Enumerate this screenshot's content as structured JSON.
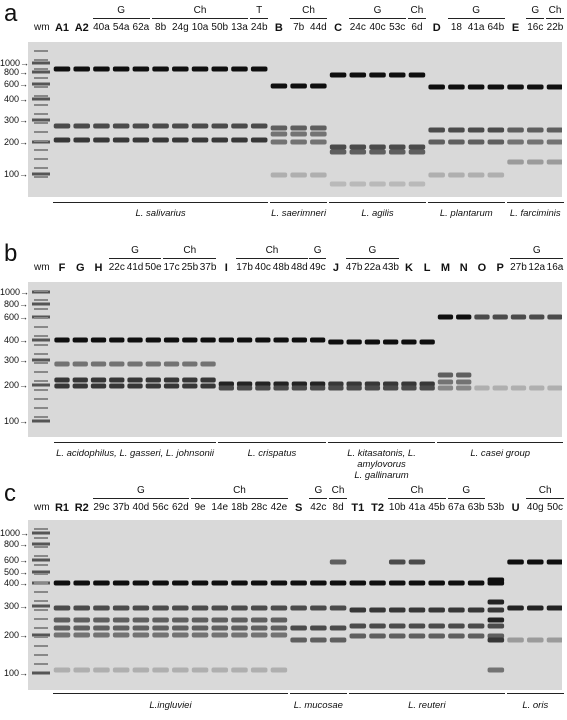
{
  "panels": [
    {
      "letter": "a",
      "wm": "wm",
      "lanes": [
        "A1",
        "A2",
        "40a",
        "54a",
        "62a",
        "8b",
        "24g",
        "10a",
        "50b",
        "13a",
        "24b",
        "B",
        "7b",
        "44d",
        "C",
        "24c",
        "40c",
        "53c",
        "6d",
        "D",
        "18",
        "41a",
        "64b",
        "E",
        "16c",
        "22b"
      ],
      "bold_lanes": [
        "A1",
        "A2",
        "B",
        "C",
        "D",
        "E"
      ],
      "groups": [
        {
          "label": "G",
          "from": 2,
          "to": 4
        },
        {
          "label": "Ch",
          "from": 5,
          "to": 9
        },
        {
          "label": "T",
          "from": 10,
          "to": 10
        },
        {
          "label": "Ch",
          "from": 12,
          "to": 13
        },
        {
          "label": "G",
          "from": 15,
          "to": 17
        },
        {
          "label": "Ch",
          "from": 18,
          "to": 18
        },
        {
          "label": "G",
          "from": 20,
          "to": 22
        },
        {
          "label": "G",
          "from": 24,
          "to": 24
        },
        {
          "label": "Ch",
          "from": 25,
          "to": 25
        }
      ],
      "markers": [
        "1000",
        "800",
        "600",
        "400",
        "300",
        "200",
        "100"
      ],
      "species": [
        {
          "label": "L. salivarius",
          "from": 0,
          "to": 10
        },
        {
          "label": "L. saerimneri",
          "from": 11,
          "to": 13
        },
        {
          "label": "L. agilis",
          "from": 14,
          "to": 18
        },
        {
          "label": "L. plantarum",
          "from": 19,
          "to": 22
        },
        {
          "label": "L. farciminis",
          "from": 23,
          "to": 25
        }
      ]
    },
    {
      "letter": "b",
      "wm": "wm",
      "lanes": [
        "F",
        "G",
        "H",
        "22c",
        "41d",
        "50e",
        "17c",
        "25b",
        "37b",
        "I",
        "17b",
        "40c",
        "48b",
        "48d",
        "49c",
        "J",
        "47b",
        "22a",
        "43b",
        "K",
        "L",
        "M",
        "N",
        "O",
        "P",
        "27b",
        "12a",
        "16a"
      ],
      "bold_lanes": [
        "F",
        "G",
        "H",
        "I",
        "J",
        "K",
        "L",
        "M",
        "N",
        "O",
        "P"
      ],
      "groups": [
        {
          "label": "G",
          "from": 3,
          "to": 5
        },
        {
          "label": "Ch",
          "from": 6,
          "to": 8
        },
        {
          "label": "Ch",
          "from": 10,
          "to": 13
        },
        {
          "label": "G",
          "from": 14,
          "to": 14
        },
        {
          "label": "G",
          "from": 16,
          "to": 18
        },
        {
          "label": "G",
          "from": 25,
          "to": 27
        }
      ],
      "markers": [
        "1000",
        "800",
        "600",
        "400",
        "300",
        "200",
        "100"
      ],
      "species": [
        {
          "label": "L. acidophilus, L. gasseri, L. johnsonii",
          "from": 0,
          "to": 8
        },
        {
          "label": "L. crispatus",
          "from": 9,
          "to": 14
        },
        {
          "label": "L. kitasatonis, L. amylovorus",
          "label2": "L. gallinarum",
          "from": 15,
          "to": 20
        },
        {
          "label": "L. casei group",
          "from": 21,
          "to": 27
        }
      ]
    },
    {
      "letter": "c",
      "wm": "wm",
      "lanes": [
        "R1",
        "R2",
        "29c",
        "37b",
        "40d",
        "56c",
        "62d",
        "9e",
        "14e",
        "18b",
        "28c",
        "42e",
        "S",
        "42c",
        "8d",
        "T1",
        "T2",
        "10b",
        "41a",
        "45b",
        "67a",
        "63b",
        "53b",
        "U",
        "40g",
        "50c"
      ],
      "bold_lanes": [
        "R1",
        "R2",
        "S",
        "T1",
        "T2",
        "U"
      ],
      "groups": [
        {
          "label": "G",
          "from": 2,
          "to": 6
        },
        {
          "label": "Ch",
          "from": 7,
          "to": 11
        },
        {
          "label": "G",
          "from": 13,
          "to": 13
        },
        {
          "label": "Ch",
          "from": 14,
          "to": 14
        },
        {
          "label": "Ch",
          "from": 17,
          "to": 19
        },
        {
          "label": "G",
          "from": 20,
          "to": 21
        },
        {
          "label": "Ch",
          "from": 24,
          "to": 25
        }
      ],
      "markers": [
        "1000",
        "800",
        "600",
        "500",
        "400",
        "300",
        "200",
        "100"
      ],
      "species": [
        {
          "label": "L.ingluviei",
          "from": 0,
          "to": 11
        },
        {
          "label": "L. mucosae",
          "from": 12,
          "to": 14
        },
        {
          "label": "L. reuteri",
          "from": 15,
          "to": 22
        },
        {
          "label": "L. oris",
          "from": 23,
          "to": 25
        }
      ]
    }
  ]
}
